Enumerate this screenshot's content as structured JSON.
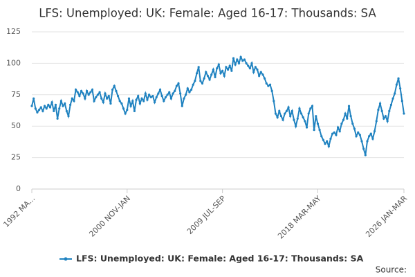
{
  "chart_data": {
    "type": "line",
    "title": "LFS: Unemployed: UK: Female: Aged 16-17: Thousands: SA",
    "source": "Source:",
    "categories": [
      "1992 MA...",
      null,
      null,
      null,
      null,
      null,
      null,
      null,
      null,
      null,
      null,
      null,
      null,
      null,
      null,
      null,
      null,
      null,
      null,
      null,
      null,
      null,
      null,
      null,
      null,
      null,
      null,
      null,
      null,
      null,
      null,
      null,
      null,
      null,
      null,
      null,
      null,
      null,
      null,
      null,
      null,
      null,
      null,
      null,
      null,
      null,
      null,
      null,
      null,
      null,
      null,
      null,
      "2000 NOV-JAN",
      null,
      null,
      null,
      null,
      null,
      null,
      null,
      null,
      null,
      null,
      null,
      null,
      null,
      null,
      null,
      null,
      null,
      null,
      null,
      null,
      null,
      null,
      null,
      null,
      null,
      null,
      null,
      null,
      null,
      null,
      null,
      null,
      null,
      null,
      null,
      null,
      null,
      null,
      null,
      null,
      null,
      null,
      null,
      null,
      null,
      null,
      null,
      null,
      null,
      null,
      null,
      "2009 JUL-SEP",
      null,
      null,
      null,
      null,
      null,
      null,
      null,
      null,
      null,
      null,
      null,
      null,
      null,
      null,
      null,
      null,
      null,
      null,
      null,
      null,
      null,
      null,
      null,
      null,
      null,
      null,
      null,
      null,
      null,
      null,
      null,
      null,
      null,
      null,
      null,
      null,
      null,
      null,
      null,
      null,
      null,
      null,
      null,
      null,
      null,
      null,
      null,
      null,
      null,
      null,
      null,
      "2018 MAR-MAY",
      null,
      null,
      null,
      null,
      null,
      null,
      null,
      null,
      null,
      null,
      null,
      null,
      null,
      null,
      null,
      null,
      null,
      null,
      null,
      null,
      null,
      null,
      null,
      null,
      null,
      null,
      null,
      null,
      null,
      null,
      null,
      null,
      null,
      null,
      null,
      null,
      null,
      null,
      null,
      null,
      null,
      null,
      null,
      null,
      null,
      null,
      "2026 JAN-MAR"
    ],
    "series": [
      {
        "name": "LFS: Unemployed: UK: Female: Aged 16-17: Thousands: SA",
        "color": "#1f82c0",
        "values": [
          66,
          72,
          64,
          61,
          63,
          65,
          62,
          66,
          64,
          67,
          65,
          69,
          62,
          67,
          56,
          64,
          70,
          66,
          68,
          62,
          58,
          67,
          72,
          70,
          79,
          77,
          74,
          78,
          76,
          72,
          78,
          75,
          77,
          79,
          70,
          73,
          75,
          77,
          72,
          69,
          76,
          72,
          74,
          68,
          79,
          82,
          78,
          74,
          70,
          68,
          64,
          60,
          63,
          72,
          66,
          70,
          62,
          71,
          74,
          68,
          72,
          70,
          76,
          71,
          75,
          73,
          74,
          69,
          73,
          76,
          79,
          74,
          70,
          73,
          75,
          77,
          72,
          76,
          78,
          82,
          84,
          76,
          66,
          72,
          75,
          80,
          77,
          79,
          83,
          86,
          92,
          97,
          86,
          84,
          88,
          93,
          90,
          87,
          91,
          95,
          89,
          96,
          99,
          92,
          94,
          90,
          97,
          95,
          98,
          94,
          104,
          99,
          103,
          100,
          105,
          102,
          103,
          100,
          98,
          96,
          100,
          93,
          97,
          95,
          90,
          93,
          91,
          88,
          84,
          82,
          83,
          78,
          70,
          60,
          57,
          62,
          58,
          55,
          60,
          62,
          65,
          58,
          62,
          55,
          50,
          56,
          64,
          60,
          57,
          54,
          49,
          60,
          64,
          66,
          47,
          58,
          52,
          47,
          42,
          39,
          36,
          38,
          34,
          40,
          44,
          45,
          43,
          49,
          46,
          52,
          55,
          60,
          56,
          66,
          58,
          52,
          48,
          42,
          45,
          43,
          38,
          32,
          27,
          38,
          42,
          44,
          40,
          46,
          54,
          63,
          68,
          62,
          56,
          58,
          54,
          62,
          67,
          72,
          76,
          83,
          88,
          80,
          70,
          60
        ]
      }
    ],
    "ylim": [
      0,
      125
    ],
    "yticks": [
      0,
      25,
      50,
      75,
      100,
      125
    ],
    "grid": true
  }
}
